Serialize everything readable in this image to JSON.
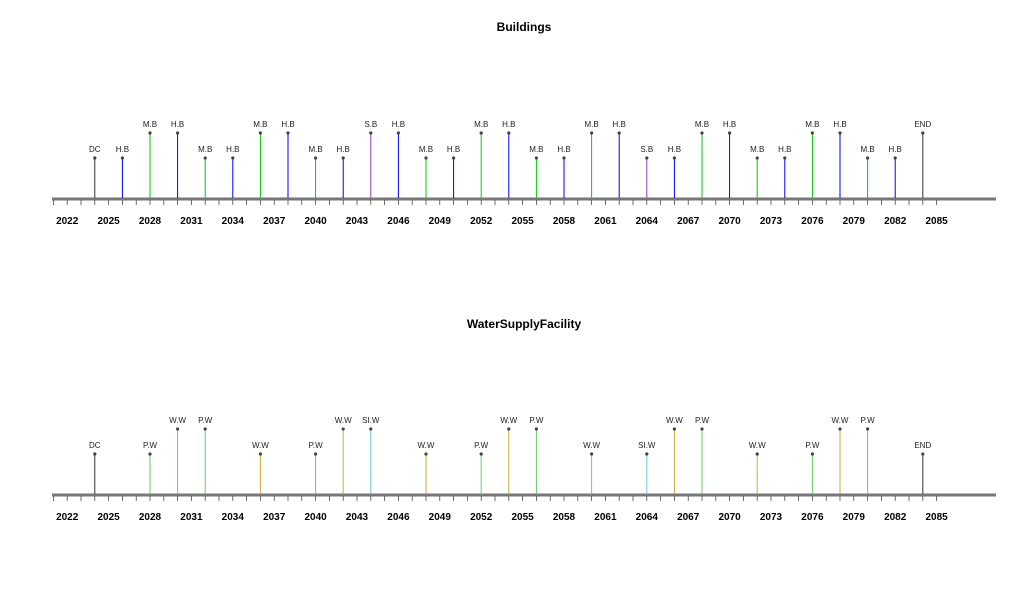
{
  "chart_data": [
    {
      "type": "timeline",
      "title": "Buildings",
      "xlim": [
        2020.5,
        2087
      ],
      "ticks": [
        2022,
        2025,
        2028,
        2031,
        2034,
        2037,
        2040,
        2043,
        2046,
        2049,
        2052,
        2055,
        2058,
        2061,
        2064,
        2067,
        2070,
        2073,
        2076,
        2079,
        2082,
        2085
      ],
      "events": [
        {
          "x": 2024,
          "label": "DC",
          "level": "low",
          "color": "#333333"
        },
        {
          "x": 2026,
          "label": "H.B",
          "level": "low",
          "color": "#0000ff"
        },
        {
          "x": 2028,
          "label": "M.B",
          "level": "high",
          "color": "#00cc00"
        },
        {
          "x": 2030,
          "label": "H.B",
          "level": "high",
          "color": "#0000ff"
        },
        {
          "x": 2032,
          "label": "M.B",
          "level": "low",
          "color": "#00cc00"
        },
        {
          "x": 2034,
          "label": "H.B",
          "level": "low",
          "color": "#0000ff"
        },
        {
          "x": 2036,
          "label": "M.B",
          "level": "high",
          "color": "#00cc00"
        },
        {
          "x": 2038,
          "label": "H.B",
          "level": "high",
          "color": "#0000ff"
        },
        {
          "x": 2040,
          "label": "M.B",
          "level": "low",
          "color": "#00cc00"
        },
        {
          "x": 2042,
          "label": "H.B",
          "level": "low",
          "color": "#0000ff"
        },
        {
          "x": 2044,
          "label": "S.B",
          "level": "high",
          "color": "#9933cc"
        },
        {
          "x": 2046,
          "label": "H.B",
          "level": "high",
          "color": "#0000ff"
        },
        {
          "x": 2048,
          "label": "M.B",
          "level": "low",
          "color": "#00cc00"
        },
        {
          "x": 2050,
          "label": "H.B",
          "level": "low",
          "color": "#0000ff"
        },
        {
          "x": 2052,
          "label": "M.B",
          "level": "high",
          "color": "#00cc00"
        },
        {
          "x": 2054,
          "label": "H.B",
          "level": "high",
          "color": "#0000ff"
        },
        {
          "x": 2056,
          "label": "M.B",
          "level": "low",
          "color": "#00cc00"
        },
        {
          "x": 2058,
          "label": "H.B",
          "level": "low",
          "color": "#0000ff"
        },
        {
          "x": 2060,
          "label": "M.B",
          "level": "high",
          "color": "#00cc00"
        },
        {
          "x": 2062,
          "label": "H.B",
          "level": "high",
          "color": "#0000ff"
        },
        {
          "x": 2064,
          "label": "S.B",
          "level": "low",
          "color": "#9933cc"
        },
        {
          "x": 2066,
          "label": "H.B",
          "level": "low",
          "color": "#0000ff"
        },
        {
          "x": 2068,
          "label": "M.B",
          "level": "high",
          "color": "#00cc00"
        },
        {
          "x": 2070,
          "label": "H.B",
          "level": "high",
          "color": "#0000ff"
        },
        {
          "x": 2072,
          "label": "M.B",
          "level": "low",
          "color": "#00cc00"
        },
        {
          "x": 2074,
          "label": "H.B",
          "level": "low",
          "color": "#0000ff"
        },
        {
          "x": 2076,
          "label": "M.B",
          "level": "high",
          "color": "#00cc00"
        },
        {
          "x": 2078,
          "label": "H.B",
          "level": "high",
          "color": "#0000ff"
        },
        {
          "x": 2080,
          "label": "M.B",
          "level": "low",
          "color": "#00cc00"
        },
        {
          "x": 2082,
          "label": "H.B",
          "level": "low",
          "color": "#0000ff"
        },
        {
          "x": 2084,
          "label": "END",
          "level": "high",
          "color": "#333333"
        }
      ]
    },
    {
      "type": "timeline",
      "title": "WaterSupplyFacility",
      "xlim": [
        2020.5,
        2087
      ],
      "ticks": [
        2022,
        2025,
        2028,
        2031,
        2034,
        2037,
        2040,
        2043,
        2046,
        2049,
        2052,
        2055,
        2058,
        2061,
        2064,
        2067,
        2070,
        2073,
        2076,
        2079,
        2082,
        2085
      ],
      "events": [
        {
          "x": 2024,
          "label": "DC",
          "level": "low",
          "color": "#333333"
        },
        {
          "x": 2028,
          "label": "P.W",
          "level": "low",
          "color": "#66cc66"
        },
        {
          "x": 2030,
          "label": "W.W",
          "level": "high",
          "color": "#ccaa33"
        },
        {
          "x": 2032,
          "label": "P.W",
          "level": "high",
          "color": "#66cc66"
        },
        {
          "x": 2036,
          "label": "W.W",
          "level": "low",
          "color": "#ccaa33"
        },
        {
          "x": 2040,
          "label": "P.W",
          "level": "low",
          "color": "#66cc66"
        },
        {
          "x": 2042,
          "label": "W.W",
          "level": "high",
          "color": "#ccaa33"
        },
        {
          "x": 2044,
          "label": "SI.W",
          "level": "high",
          "color": "#66cccc"
        },
        {
          "x": 2048,
          "label": "W.W",
          "level": "low",
          "color": "#ccaa33"
        },
        {
          "x": 2052,
          "label": "P.W",
          "level": "low",
          "color": "#66cc66"
        },
        {
          "x": 2054,
          "label": "W.W",
          "level": "high",
          "color": "#ccaa33"
        },
        {
          "x": 2056,
          "label": "P.W",
          "level": "high",
          "color": "#66cc66"
        },
        {
          "x": 2060,
          "label": "W.W",
          "level": "low",
          "color": "#ccaa33"
        },
        {
          "x": 2064,
          "label": "SI.W",
          "level": "low",
          "color": "#66cccc"
        },
        {
          "x": 2066,
          "label": "W.W",
          "level": "high",
          "color": "#ccaa33"
        },
        {
          "x": 2068,
          "label": "P.W",
          "level": "high",
          "color": "#66cc66"
        },
        {
          "x": 2072,
          "label": "W.W",
          "level": "low",
          "color": "#ccaa33"
        },
        {
          "x": 2076,
          "label": "P.W",
          "level": "low",
          "color": "#66cc66"
        },
        {
          "x": 2078,
          "label": "W.W",
          "level": "high",
          "color": "#ccaa33"
        },
        {
          "x": 2080,
          "label": "P.W",
          "level": "high",
          "color": "#66cc66"
        },
        {
          "x": 2084,
          "label": "END",
          "level": "low",
          "color": "#333333"
        }
      ]
    }
  ]
}
